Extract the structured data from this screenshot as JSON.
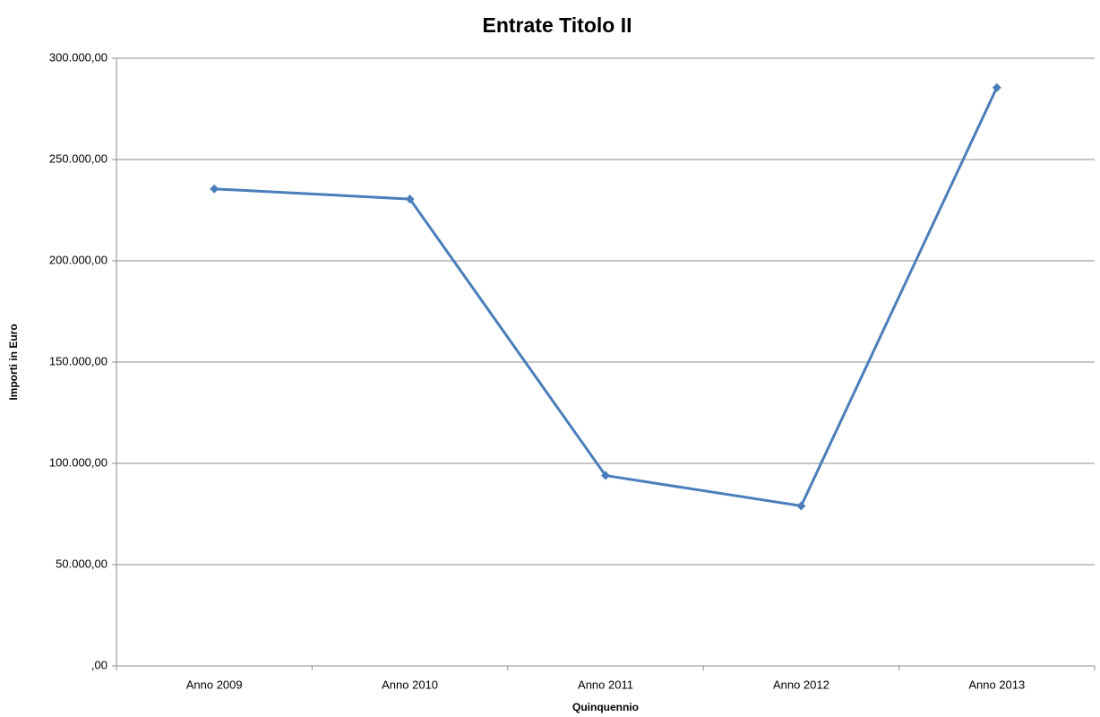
{
  "chart_data": {
    "type": "line",
    "title": "Entrate Titolo II",
    "x_label": "Quinquennio",
    "y_label": "Importi in Euro",
    "categories": [
      "Anno 2009",
      "Anno 2010",
      "Anno 2011",
      "Anno 2012",
      "Anno 2013"
    ],
    "series": [
      {
        "name": "Entrate Titolo II",
        "color": "#4a7ebb",
        "values": [
          235500,
          230500,
          94000,
          79000,
          285500
        ]
      }
    ],
    "ylim": [
      0,
      300000
    ],
    "yticks": [
      {
        "value": 0,
        "label": ",00"
      },
      {
        "value": 50000,
        "label": "50.000,00"
      },
      {
        "value": 100000,
        "label": "100.000,00"
      },
      {
        "value": 150000,
        "label": "150.000,00"
      },
      {
        "value": 200000,
        "label": "200.000,00"
      },
      {
        "value": 250000,
        "label": "250.000,00"
      },
      {
        "value": 300000,
        "label": "300.000,00"
      }
    ],
    "grid": true,
    "legend": false
  }
}
